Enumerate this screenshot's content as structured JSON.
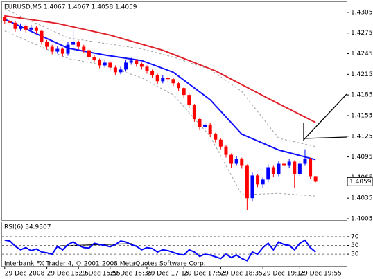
{
  "chart_data": [
    {
      "type": "candlestick",
      "title": "EURUSD,M5  1.4067 1.4067 1.4058 1.4059",
      "up_color": "#0000ff",
      "down_color": "#ff0000",
      "xlim": [
        -0.5,
        64.9
      ],
      "ylim": [
        1.4003,
        1.432
      ],
      "yticks": [
        1.4305,
        1.4275,
        1.4245,
        1.4215,
        1.4185,
        1.4155,
        1.4125,
        1.4095,
        1.4065,
        1.4035,
        1.4005
      ],
      "candles": [
        [
          1.4298,
          1.4302,
          1.4288,
          1.4292
        ],
        [
          1.4292,
          1.4296,
          1.4286,
          1.429
        ],
        [
          1.429,
          1.4293,
          1.4277,
          1.4281
        ],
        [
          1.4281,
          1.4289,
          1.4278,
          1.4285
        ],
        [
          1.4285,
          1.4287,
          1.4276,
          1.428
        ],
        [
          1.428,
          1.4287,
          1.4277,
          1.4283
        ],
        [
          1.4283,
          1.4285,
          1.4274,
          1.4278
        ],
        [
          1.4278,
          1.428,
          1.4258,
          1.4262
        ],
        [
          1.4262,
          1.4265,
          1.4251,
          1.4255
        ],
        [
          1.4255,
          1.4258,
          1.4244,
          1.4248
        ],
        [
          1.4248,
          1.4256,
          1.4245,
          1.4252
        ],
        [
          1.4252,
          1.4254,
          1.4241,
          1.4245
        ],
        [
          1.4245,
          1.4262,
          1.4242,
          1.4258
        ],
        [
          1.4258,
          1.428,
          1.4255,
          1.4262
        ],
        [
          1.4262,
          1.4264,
          1.4251,
          1.4255
        ],
        [
          1.4255,
          1.4258,
          1.4246,
          1.425
        ],
        [
          1.425,
          1.4252,
          1.4236,
          1.424
        ],
        [
          1.424,
          1.4243,
          1.4232,
          1.4236
        ],
        [
          1.4236,
          1.4238,
          1.4224,
          1.4228
        ],
        [
          1.4228,
          1.4236,
          1.4225,
          1.4232
        ],
        [
          1.4232,
          1.4234,
          1.4221,
          1.4225
        ],
        [
          1.4225,
          1.4228,
          1.4214,
          1.4218
        ],
        [
          1.4218,
          1.4226,
          1.4215,
          1.4222
        ],
        [
          1.4222,
          1.4236,
          1.4219,
          1.4232
        ],
        [
          1.4232,
          1.4239,
          1.4229,
          1.4235
        ],
        [
          1.4235,
          1.4237,
          1.4226,
          1.423
        ],
        [
          1.423,
          1.4232,
          1.4222,
          1.4226
        ],
        [
          1.4226,
          1.4228,
          1.4216,
          1.422
        ],
        [
          1.422,
          1.4222,
          1.421,
          1.4214
        ],
        [
          1.4214,
          1.4216,
          1.4201,
          1.4205
        ],
        [
          1.4205,
          1.4214,
          1.4202,
          1.421
        ],
        [
          1.421,
          1.4212,
          1.4204,
          1.4208
        ],
        [
          1.4208,
          1.421,
          1.4198,
          1.4202
        ],
        [
          1.4202,
          1.4204,
          1.4191,
          1.4195
        ],
        [
          1.4195,
          1.4197,
          1.4181,
          1.4185
        ],
        [
          1.4185,
          1.4187,
          1.4166,
          1.417
        ],
        [
          1.417,
          1.4172,
          1.4146,
          1.415
        ],
        [
          1.415,
          1.4152,
          1.4134,
          1.4138
        ],
        [
          1.4138,
          1.4146,
          1.4135,
          1.4142
        ],
        [
          1.4142,
          1.4144,
          1.4124,
          1.4128
        ],
        [
          1.4128,
          1.413,
          1.4116,
          1.412
        ],
        [
          1.412,
          1.4122,
          1.4106,
          1.411
        ],
        [
          1.411,
          1.4112,
          1.4094,
          1.4098
        ],
        [
          1.4098,
          1.41,
          1.4079,
          1.4085
        ],
        [
          1.4085,
          1.4096,
          1.4082,
          1.4092
        ],
        [
          1.4092,
          1.4094,
          1.4078,
          1.4082
        ],
        [
          1.4082,
          1.4084,
          1.4018,
          1.4035
        ],
        [
          1.4035,
          1.4072,
          1.403,
          1.4068
        ],
        [
          1.4068,
          1.407,
          1.4051,
          1.4055
        ],
        [
          1.4055,
          1.4066,
          1.405,
          1.4062
        ],
        [
          1.4062,
          1.4084,
          1.4058,
          1.408
        ],
        [
          1.408,
          1.4082,
          1.4066,
          1.407
        ],
        [
          1.407,
          1.4089,
          1.4067,
          1.4085
        ],
        [
          1.4085,
          1.4087,
          1.4078,
          1.4082
        ],
        [
          1.4082,
          1.4092,
          1.4079,
          1.4088
        ],
        [
          1.4088,
          1.409,
          1.405,
          1.407
        ],
        [
          1.407,
          1.4089,
          1.4067,
          1.4085
        ],
        [
          1.4085,
          1.4106,
          1.4082,
          1.4092
        ],
        [
          1.4092,
          1.4094,
          1.4063,
          1.4067
        ],
        [
          1.4067,
          1.4067,
          1.4058,
          1.4059
        ]
      ],
      "series": [
        {
          "color": "#e0202a",
          "style": "solid",
          "x": [
            0,
            10,
            20,
            30,
            40,
            50,
            59
          ],
          "values": [
            1.43,
            1.4289,
            1.4272,
            1.425,
            1.422,
            1.418,
            1.4145
          ]
        },
        {
          "color": "#1010ff",
          "style": "solid",
          "x": [
            0,
            12,
            19,
            26,
            32,
            39,
            45,
            52,
            59
          ],
          "values": [
            1.4295,
            1.4253,
            1.4243,
            1.4235,
            1.4218,
            1.4178,
            1.4128,
            1.4105,
            1.4091
          ]
        },
        {
          "color": "#a0a0a0",
          "style": "dashed",
          "x": [
            0,
            12,
            19,
            26,
            32,
            39,
            45,
            52,
            59
          ],
          "values": [
            1.431,
            1.4268,
            1.426,
            1.4252,
            1.424,
            1.4222,
            1.419,
            1.4122,
            1.411
          ]
        },
        {
          "color": "#a0a0a0",
          "style": "dashed",
          "x": [
            0,
            12,
            19,
            26,
            32,
            39,
            45,
            52,
            59
          ],
          "values": [
            1.4278,
            1.4238,
            1.4228,
            1.421,
            1.4185,
            1.4125,
            1.404,
            1.4042,
            1.4038
          ]
        }
      ]
    },
    {
      "type": "line",
      "title": "RSI(6) 34.9307",
      "color": "#0000ff",
      "xlim": [
        -0.5,
        64.9
      ],
      "ylim": [
        0,
        100
      ],
      "yticks": [
        70,
        50,
        30
      ],
      "grid": true,
      "values": [
        62,
        60,
        48,
        40,
        45,
        38,
        42,
        35,
        33,
        30,
        48,
        40,
        52,
        58,
        50,
        45,
        44,
        55,
        52,
        50,
        47,
        52,
        60,
        58,
        52,
        48,
        40,
        45,
        43,
        35,
        40,
        38,
        34,
        30,
        28,
        40,
        35,
        25,
        30,
        28,
        24,
        20,
        30,
        22,
        28,
        20,
        15,
        35,
        30,
        45,
        55,
        40,
        58,
        52,
        50,
        40,
        55,
        62,
        45,
        35
      ],
      "xticks": [
        {
          "value": 0,
          "label": "29 Dec 2008"
        },
        {
          "value": 8,
          "label": "29 Dec 15:15"
        },
        {
          "value": 14,
          "label": "29 Dec 15:55"
        },
        {
          "value": 20,
          "label": "29 Dec 16:35"
        },
        {
          "value": 27,
          "label": "29 Dec 17:15"
        },
        {
          "value": 34,
          "label": "29 Dec 17:55"
        },
        {
          "value": 41,
          "label": "29 Dec 18:35"
        },
        {
          "value": 49,
          "label": "29 Dec 19:15"
        },
        {
          "value": 56,
          "label": "29 Dec 19:55"
        }
      ],
      "footer": "Interbank FX Trader 4, © 2001-2008 MetaQuotes Software Corp."
    }
  ]
}
